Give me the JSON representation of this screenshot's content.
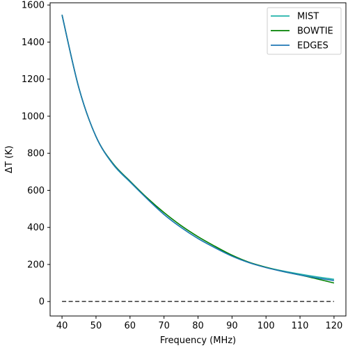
{
  "chart_data": {
    "type": "line",
    "xlabel": "Frequency (MHz)",
    "ylabel": "ΔT (K)",
    "xlim": [
      36.5,
      123.5
    ],
    "ylim": [
      -78,
      1612
    ],
    "x_ticks": [
      40,
      50,
      60,
      70,
      80,
      90,
      100,
      110,
      120
    ],
    "y_ticks": [
      0,
      200,
      400,
      600,
      800,
      1000,
      1200,
      1400,
      1600
    ],
    "grid": false,
    "legend_position": "top-right",
    "x": [
      40,
      45,
      50,
      55,
      60,
      65,
      70,
      75,
      80,
      85,
      90,
      95,
      100,
      105,
      110,
      115,
      120
    ],
    "series": [
      {
        "name": "MIST",
        "color": "#20b2aa",
        "values": [
          1547,
          1150,
          890,
          740,
          645,
          555,
          470,
          400,
          340,
          290,
          245,
          210,
          185,
          165,
          148,
          133,
          120
        ]
      },
      {
        "name": "BOWTIE",
        "color": "#008000",
        "values": [
          1547,
          1150,
          890,
          745,
          650,
          560,
          480,
          410,
          350,
          298,
          250,
          212,
          185,
          162,
          143,
          122,
          100
        ]
      },
      {
        "name": "EDGES",
        "color": "#1f77b4",
        "values": [
          1547,
          1150,
          890,
          742,
          647,
          555,
          470,
          400,
          340,
          290,
          245,
          210,
          183,
          162,
          143,
          127,
          113
        ]
      }
    ],
    "reference_line": {
      "y": 0,
      "x_range": [
        40,
        120
      ],
      "style": "dashed",
      "color": "#444444"
    }
  }
}
